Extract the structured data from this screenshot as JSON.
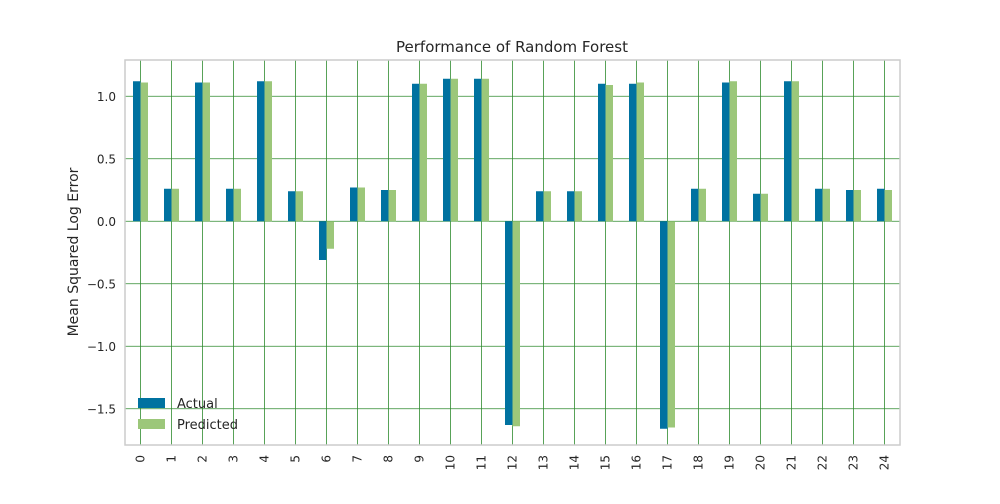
{
  "chart_data": {
    "type": "bar",
    "title": "Performance of Random Forest",
    "xlabel": "",
    "ylabel": "Mean Squared Log Error",
    "categories": [
      "0",
      "1",
      "2",
      "3",
      "4",
      "5",
      "6",
      "7",
      "8",
      "9",
      "10",
      "11",
      "12",
      "13",
      "14",
      "15",
      "16",
      "17",
      "18",
      "19",
      "20",
      "21",
      "22",
      "23",
      "24"
    ],
    "series": [
      {
        "name": "Actual",
        "color": "#0072a0",
        "values": [
          1.12,
          0.26,
          1.11,
          0.26,
          1.12,
          0.24,
          -0.31,
          0.27,
          0.25,
          1.1,
          1.14,
          1.14,
          -1.63,
          0.24,
          0.24,
          1.1,
          1.1,
          -1.66,
          0.26,
          1.11,
          0.22,
          1.12,
          0.26,
          0.25,
          0.26
        ]
      },
      {
        "name": "Predicted",
        "color": "#9cc77a",
        "values": [
          1.11,
          0.26,
          1.11,
          0.26,
          1.12,
          0.24,
          -0.22,
          0.27,
          0.25,
          1.1,
          1.14,
          1.14,
          -1.64,
          0.24,
          0.24,
          1.09,
          1.11,
          -1.65,
          0.26,
          1.12,
          0.22,
          1.12,
          0.26,
          0.25,
          0.25
        ]
      }
    ],
    "yticks": [
      -1.5,
      -1.0,
      -0.5,
      0.0,
      0.5,
      1.0
    ],
    "ytick_labels": [
      "−1.5",
      "−1.0",
      "−0.5",
      "0.0",
      "0.5",
      "1.0"
    ],
    "ylim": [
      -1.79,
      1.29
    ],
    "grid": true,
    "grid_color": "#2e8b2e",
    "frame_color": "#cccccc",
    "legend_position": "lower-left"
  }
}
